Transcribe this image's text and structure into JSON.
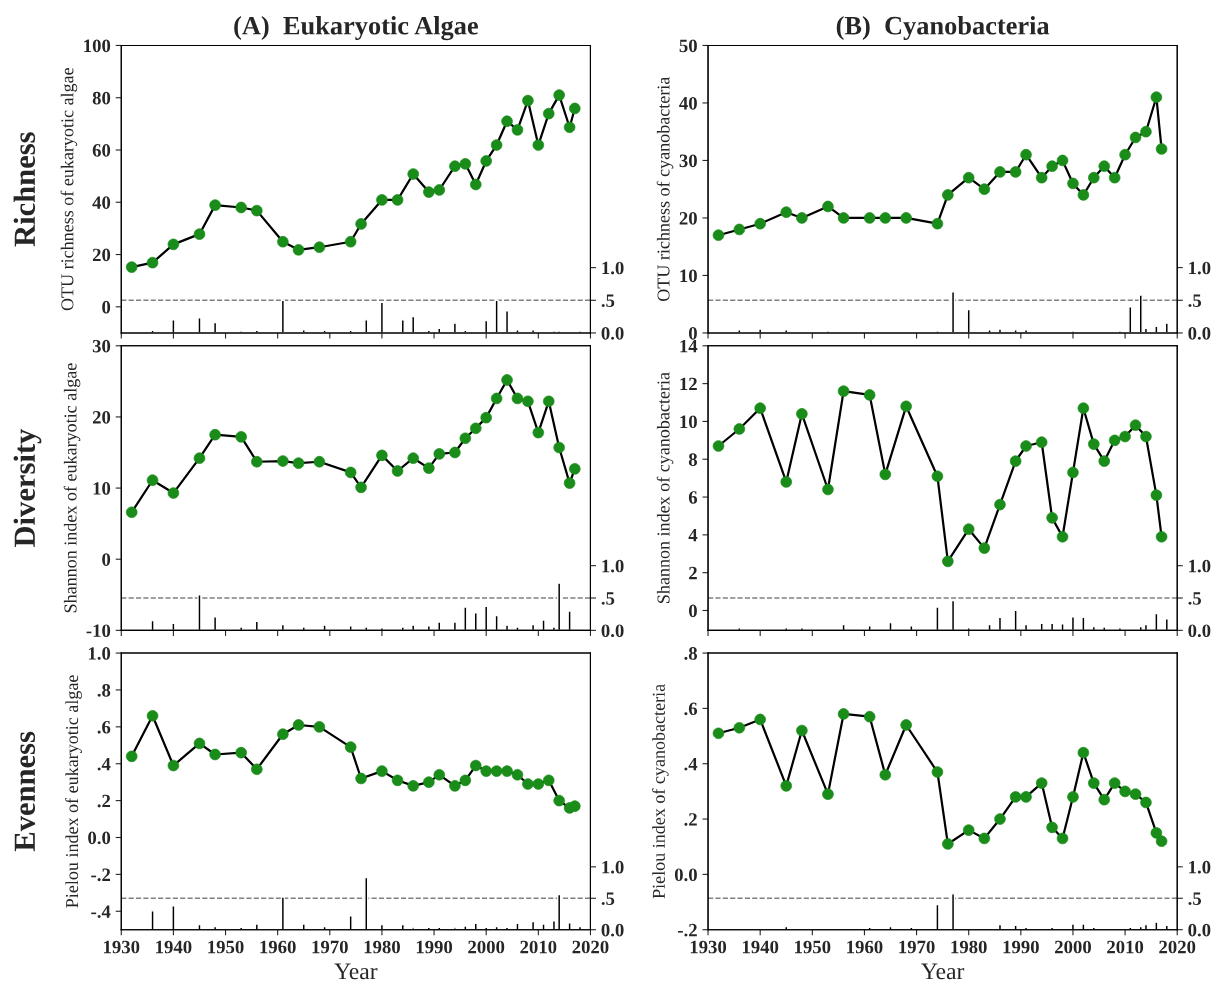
{
  "chart_data": [
    {
      "type": "line",
      "title": "(A)  Eukaryotic Algae",
      "ylabel": "OTU richness of eukaryotic algae",
      "annotations": [
        "Richness"
      ],
      "tick_labels": "y",
      "x": [
        1932,
        1936,
        1940,
        1945,
        1948,
        1953,
        1956,
        1961,
        1964,
        1968,
        1974,
        1976,
        1980,
        1983,
        1986,
        1989,
        1991,
        1994,
        1996,
        1998,
        2000,
        2002,
        2004,
        2006,
        2008,
        2010,
        2012,
        2014,
        2016,
        2017
      ],
      "xlim": [
        1930,
        2020
      ],
      "xticks": [
        1930,
        1940,
        1950,
        1960,
        1970,
        1980,
        1990,
        2000,
        2010,
        2020
      ],
      "ylim": [
        -10,
        100
      ],
      "yticks": [
        0,
        20,
        40,
        60,
        80,
        100
      ],
      "y2lim": [
        0,
        4.4
      ],
      "y2ticks": [
        {
          "value": 0,
          "label": "0.0"
        },
        {
          "value": 0.5,
          "label": ".5"
        },
        {
          "value": 1,
          "label": "1.0"
        }
      ],
      "ref_lines": [
        {
          "axis": "y2",
          "value": 0.5,
          "color": "#808080",
          "line_style": "dashed"
        }
      ],
      "series": [
        {
          "color": "#000000",
          "marker": "circle",
          "colors": [
            "#1a8c1a",
            "#1a8c1a",
            "#1a8c1a",
            "#1a8c1a",
            "#1a8c1a",
            "#1a8c1a",
            "#1a8c1a",
            "#1a8c1a",
            "#1a8c1a",
            "#1a8c1a",
            "#1a8c1a",
            "#1a8c1a",
            "#1a8c1a",
            "#1a8c1a",
            "#1a8c1a",
            "#1a8c1a",
            "#1a8c1a",
            "#1a8c1a",
            "#1a8c1a",
            "#1a8c1a",
            "#1a8c1a",
            "#1a8c1a",
            "#1a8c1a",
            "#1a8c1a",
            "#1a8c1a",
            "#1a8c1a",
            "#1a8c1a",
            "#1a8c1a",
            "#1a8c1a",
            "#1a8c1a"
          ],
          "values": [
            15.2,
            16.9,
            23.9,
            27.8,
            38.9,
            38.0,
            36.8,
            24.9,
            21.8,
            22.8,
            24.9,
            31.7,
            40.9,
            40.9,
            50.8,
            43.9,
            44.7,
            53.8,
            54.7,
            46.8,
            55.8,
            61.9,
            71.0,
            67.7,
            78.9,
            61.9,
            73.9,
            81.0,
            68.7,
            75.9
          ]
        },
        {
          "type": "bar",
          "axis": "y2",
          "color": "#000000",
          "x": [
            1936,
            1940,
            1945,
            1948,
            1953,
            1956,
            1961,
            1965,
            1969,
            1974,
            1977,
            1980,
            1984,
            1986,
            1989,
            1991,
            1994,
            1996,
            1998,
            2000,
            2002,
            2004,
            2006,
            2009,
            2011,
            2013,
            2014,
            2016,
            2018
          ],
          "values": [
            0.04,
            0.2,
            0.23,
            0.16,
            0.03,
            0.04,
            0.5,
            0.05,
            0.04,
            0.04,
            0.2,
            0.47,
            0.2,
            0.25,
            0.04,
            0.07,
            0.15,
            0.04,
            0.02,
            0.19,
            0.5,
            0.34,
            0.05,
            0.05,
            0.02,
            0.03,
            0.03,
            0.02,
            0.03
          ]
        }
      ]
    },
    {
      "type": "line",
      "title": "(B)  Cyanobacteria",
      "ylabel": "OTU richness of cyanobacteria",
      "tick_labels": "y",
      "x": [
        1932,
        1936,
        1940,
        1945,
        1948,
        1953,
        1956,
        1961,
        1964,
        1968,
        1974,
        1976,
        1980,
        1983,
        1986,
        1989,
        1991,
        1994,
        1996,
        1998,
        2000,
        2002,
        2004,
        2006,
        2008,
        2010,
        2012,
        2014,
        2016,
        2017
      ],
      "xlim": [
        1930,
        2020
      ],
      "xticks": [
        1930,
        1940,
        1950,
        1960,
        1970,
        1980,
        1990,
        2000,
        2010,
        2020
      ],
      "ylim": [
        0,
        50
      ],
      "yticks": [
        0,
        10,
        20,
        30,
        40,
        50
      ],
      "y2lim": [
        0,
        4.4
      ],
      "y2ticks": [
        {
          "value": 0,
          "label": "0.0"
        },
        {
          "value": 0.5,
          "label": ".5"
        },
        {
          "value": 1,
          "label": "1.0"
        }
      ],
      "ref_lines": [
        {
          "axis": "y2",
          "value": 0.5,
          "color": "#808080",
          "line_style": "dashed"
        }
      ],
      "series": [
        {
          "color": "#000000",
          "marker": "circle",
          "colors": [
            "#1a8c1a",
            "#1a8c1a",
            "#1a8c1a",
            "#1a8c1a",
            "#1a8c1a",
            "#1a8c1a",
            "#1a8c1a",
            "#1a8c1a",
            "#1a8c1a",
            "#1a8c1a",
            "#1a8c1a",
            "#1a8c1a",
            "#1a8c1a",
            "#1a8c1a",
            "#1a8c1a",
            "#1a8c1a",
            "#1a8c1a",
            "#1a8c1a",
            "#1a8c1a",
            "#1a8c1a",
            "#1a8c1a",
            "#1a8c1a",
            "#1a8c1a",
            "#1a8c1a",
            "#1a8c1a",
            "#1a8c1a",
            "#1a8c1a",
            "#1a8c1a",
            "#1a8c1a",
            "#1a8c1a"
          ],
          "values": [
            17,
            18,
            19,
            21,
            20,
            22,
            20,
            20,
            20,
            20,
            19,
            24,
            27,
            25,
            28,
            28,
            31,
            27,
            29,
            30,
            26,
            24,
            27,
            29,
            27,
            31,
            34,
            35,
            41,
            32
          ]
        },
        {
          "type": "bar",
          "axis": "y2",
          "color": "#000000",
          "x": [
            1936,
            1940,
            1945,
            1948,
            1953,
            1956,
            1961,
            1965,
            1969,
            1974,
            1977,
            1980,
            1984,
            1986,
            1989,
            1991,
            1994,
            1996,
            1998,
            2000,
            2002,
            2004,
            2006,
            2009,
            2011,
            2013,
            2014,
            2016,
            2018
          ],
          "values": [
            0.05,
            0.06,
            0.05,
            0.02,
            0.03,
            0.02,
            0.02,
            0.02,
            0.02,
            0.03,
            0.63,
            0.36,
            0.05,
            0.06,
            0.05,
            0.05,
            0.02,
            0.02,
            0.02,
            0.03,
            0.02,
            0.02,
            0.02,
            0.03,
            0.4,
            0.58,
            0.07,
            0.1,
            0.15
          ]
        }
      ]
    },
    {
      "type": "line",
      "ylabel": "Shannon index of eukaryotic algae",
      "annotations": [
        "Diversity"
      ],
      "tick_labels": "y",
      "x": [
        1932,
        1936,
        1940,
        1945,
        1948,
        1953,
        1956,
        1961,
        1964,
        1968,
        1974,
        1976,
        1980,
        1983,
        1986,
        1989,
        1991,
        1994,
        1996,
        1998,
        2000,
        2002,
        2004,
        2006,
        2008,
        2010,
        2012,
        2014,
        2016,
        2017
      ],
      "xlim": [
        1930,
        2020
      ],
      "xticks": [
        1930,
        1940,
        1950,
        1960,
        1970,
        1980,
        1990,
        2000,
        2010,
        2020
      ],
      "ylim": [
        -10,
        30
      ],
      "yticks": [
        -10,
        0,
        10,
        20,
        30
      ],
      "y2lim": [
        0,
        4.4
      ],
      "y2ticks": [
        {
          "value": 0,
          "label": "0.0"
        },
        {
          "value": 0.5,
          "label": ".5"
        },
        {
          "value": 1,
          "label": "1.0"
        }
      ],
      "ref_lines": [
        {
          "axis": "y2",
          "value": 0.5,
          "color": "#808080",
          "line_style": "dashed"
        }
      ],
      "series": [
        {
          "color": "#000000",
          "marker": "circle",
          "colors": [
            "#1a8c1a",
            "#1a8c1a",
            "#1a8c1a",
            "#1a8c1a",
            "#1a8c1a",
            "#1a8c1a",
            "#1a8c1a",
            "#1a8c1a",
            "#1a8c1a",
            "#1a8c1a",
            "#1a8c1a",
            "#1a8c1a",
            "#1a8c1a",
            "#1a8c1a",
            "#1a8c1a",
            "#1a8c1a",
            "#1a8c1a",
            "#1a8c1a",
            "#1a8c1a",
            "#1a8c1a",
            "#1a8c1a",
            "#1a8c1a",
            "#1a8c1a",
            "#1a8c1a",
            "#1a8c1a",
            "#1a8c1a",
            "#1a8c1a",
            "#1a8c1a",
            "#1a8c1a",
            "#1a8c1a"
          ],
          "values": [
            6.6,
            11.1,
            9.3,
            14.2,
            17.5,
            17.2,
            13.7,
            13.8,
            13.5,
            13.7,
            12.2,
            10.1,
            14.6,
            12.4,
            14.2,
            12.8,
            14.8,
            15.0,
            17.0,
            18.4,
            19.9,
            22.6,
            25.2,
            22.6,
            22.2,
            17.8,
            22.2,
            15.7,
            10.7,
            12.7
          ]
        },
        {
          "type": "bar",
          "axis": "y2",
          "color": "#000000",
          "x": [
            1936,
            1940,
            1945,
            1948,
            1953,
            1956,
            1961,
            1965,
            1969,
            1974,
            1977,
            1980,
            1984,
            1986,
            1989,
            1991,
            1994,
            1996,
            1998,
            2000,
            2002,
            2004,
            2006,
            2009,
            2011,
            2013,
            2014,
            2016,
            2018
          ],
          "values": [
            0.15,
            0.11,
            0.55,
            0.21,
            0.05,
            0.14,
            0.09,
            0.05,
            0.08,
            0.07,
            0.05,
            0.04,
            0.05,
            0.08,
            0.07,
            0.13,
            0.13,
            0.36,
            0.27,
            0.37,
            0.23,
            0.08,
            0.05,
            0.09,
            0.16,
            0.05,
            0.73,
            0.3,
            0.02
          ]
        }
      ]
    },
    {
      "type": "line",
      "ylabel": "Shannon index of cyanobacteria",
      "tick_labels": "y",
      "x": [
        1932,
        1936,
        1940,
        1945,
        1948,
        1953,
        1956,
        1961,
        1964,
        1968,
        1974,
        1976,
        1980,
        1983,
        1986,
        1989,
        1991,
        1994,
        1996,
        1998,
        2000,
        2002,
        2004,
        2006,
        2008,
        2010,
        2012,
        2014,
        2016,
        2017
      ],
      "xlim": [
        1930,
        2020
      ],
      "xticks": [
        1930,
        1940,
        1950,
        1960,
        1970,
        1980,
        1990,
        2000,
        2010,
        2020
      ],
      "ylim": [
        -1.05,
        14
      ],
      "yticks": [
        0,
        2,
        4,
        6,
        8,
        10,
        12,
        14
      ],
      "y2lim": [
        0,
        4.4
      ],
      "y2ticks": [
        {
          "value": 0,
          "label": "0.0"
        },
        {
          "value": 0.5,
          "label": ".5"
        },
        {
          "value": 1,
          "label": "1.0"
        }
      ],
      "ref_lines": [
        {
          "axis": "y2",
          "value": 0.5,
          "color": "#808080",
          "line_style": "dashed"
        }
      ],
      "series": [
        {
          "color": "#000000",
          "marker": "circle",
          "colors": [
            "#1a8c1a",
            "#1a8c1a",
            "#1a8c1a",
            "#1a8c1a",
            "#1a8c1a",
            "#1a8c1a",
            "#1a8c1a",
            "#1a8c1a",
            "#1a8c1a",
            "#1a8c1a",
            "#1a8c1a",
            "#1a8c1a",
            "#1a8c1a",
            "#1a8c1a",
            "#1a8c1a",
            "#1a8c1a",
            "#1a8c1a",
            "#1a8c1a",
            "#1a8c1a",
            "#1a8c1a",
            "#1a8c1a",
            "#1a8c1a",
            "#1a8c1a",
            "#1a8c1a",
            "#1a8c1a",
            "#1a8c1a",
            "#1a8c1a",
            "#1a8c1a",
            "#1a8c1a",
            "#1a8c1a"
          ],
          "values": [
            8.7,
            9.6,
            10.7,
            6.8,
            10.4,
            6.4,
            11.6,
            11.4,
            7.2,
            10.8,
            7.1,
            2.6,
            4.3,
            3.3,
            5.6,
            7.9,
            8.7,
            8.9,
            4.9,
            3.9,
            7.3,
            10.7,
            8.8,
            7.9,
            9.0,
            9.2,
            9.8,
            9.2,
            6.1,
            3.9
          ]
        },
        {
          "type": "bar",
          "axis": "y2",
          "color": "#000000",
          "x": [
            1936,
            1940,
            1945,
            1948,
            1953,
            1956,
            1961,
            1965,
            1969,
            1974,
            1977,
            1980,
            1984,
            1986,
            1989,
            1991,
            1994,
            1996,
            1998,
            2000,
            2002,
            2004,
            2006,
            2009,
            2011,
            2013,
            2014,
            2016,
            2018
          ],
          "values": [
            0.04,
            0.02,
            0.04,
            0.04,
            0.02,
            0.09,
            0.07,
            0.12,
            0.07,
            0.36,
            0.46,
            0.04,
            0.09,
            0.2,
            0.31,
            0.09,
            0.11,
            0.11,
            0.1,
            0.21,
            0.2,
            0.06,
            0.05,
            0.04,
            0.02,
            0.06,
            0.09,
            0.26,
            0.18
          ]
        }
      ]
    },
    {
      "type": "line",
      "ylabel": "Pielou index of eukaryotic algae",
      "xlabel": "Year",
      "annotations": [
        "Evenness"
      ],
      "x": [
        1932,
        1936,
        1940,
        1945,
        1948,
        1953,
        1956,
        1961,
        1964,
        1968,
        1974,
        1976,
        1980,
        1983,
        1986,
        1989,
        1991,
        1994,
        1996,
        1998,
        2000,
        2002,
        2004,
        2006,
        2008,
        2010,
        2012,
        2014,
        2016,
        2017
      ],
      "xlim": [
        1930,
        2020
      ],
      "xticks": [
        1930,
        1940,
        1950,
        1960,
        1970,
        1980,
        1990,
        2000,
        2010,
        2020
      ],
      "ylim": [
        -0.5,
        1.0
      ],
      "yticks": [
        {
          "value": -0.4,
          "label": "-.4"
        },
        {
          "value": -0.2,
          "label": "-.2"
        },
        {
          "value": 0,
          "label": "0.0"
        },
        {
          "value": 0.2,
          "label": ".2"
        },
        {
          "value": 0.4,
          "label": ".4"
        },
        {
          "value": 0.6,
          "label": ".6"
        },
        {
          "value": 0.8,
          "label": ".8"
        },
        {
          "value": 1.0,
          "label": "1.0"
        }
      ],
      "y2lim": [
        0,
        4.4
      ],
      "y2ticks": [
        {
          "value": 0,
          "label": "0.0"
        },
        {
          "value": 0.5,
          "label": ".5"
        },
        {
          "value": 1,
          "label": "1.0"
        }
      ],
      "ref_lines": [
        {
          "axis": "y2",
          "value": 0.5,
          "color": "#808080",
          "line_style": "dashed"
        }
      ],
      "series": [
        {
          "color": "#000000",
          "marker": "circle",
          "colors": [
            "#1a8c1a",
            "#1a8c1a",
            "#1a8c1a",
            "#1a8c1a",
            "#1a8c1a",
            "#1a8c1a",
            "#1a8c1a",
            "#1a8c1a",
            "#1a8c1a",
            "#1a8c1a",
            "#1a8c1a",
            "#1a8c1a",
            "#1a8c1a",
            "#1a8c1a",
            "#1a8c1a",
            "#1a8c1a",
            "#1a8c1a",
            "#1a8c1a",
            "#1a8c1a",
            "#1a8c1a",
            "#1a8c1a",
            "#1a8c1a",
            "#1a8c1a",
            "#1a8c1a",
            "#1a8c1a",
            "#1a8c1a",
            "#1a8c1a",
            "#1a8c1a",
            "#1a8c1a",
            "#1a8c1a"
          ],
          "values": [
            0.44,
            0.66,
            0.39,
            0.51,
            0.45,
            0.46,
            0.37,
            0.56,
            0.61,
            0.6,
            0.49,
            0.32,
            0.36,
            0.31,
            0.28,
            0.3,
            0.34,
            0.28,
            0.31,
            0.39,
            0.36,
            0.36,
            0.36,
            0.34,
            0.29,
            0.29,
            0.31,
            0.2,
            0.16,
            0.17
          ]
        },
        {
          "type": "bar",
          "axis": "y2",
          "color": "#000000",
          "x": [
            1936,
            1940,
            1945,
            1948,
            1953,
            1956,
            1961,
            1965,
            1969,
            1974,
            1977,
            1980,
            1984,
            1986,
            1989,
            1991,
            1994,
            1996,
            1998,
            2000,
            2002,
            2004,
            2006,
            2009,
            2011,
            2013,
            2014,
            2016,
            2018
          ],
          "values": [
            0.3,
            0.38,
            0.08,
            0.05,
            0.04,
            0.09,
            0.52,
            0.09,
            0.05,
            0.22,
            0.83,
            0.08,
            0.08,
            0.03,
            0.04,
            0.04,
            0.03,
            0.06,
            0.1,
            0.04,
            0.05,
            0.04,
            0.1,
            0.13,
            0.09,
            0.14,
            0.56,
            0.11,
            0.05
          ]
        }
      ]
    },
    {
      "type": "line",
      "ylabel": "Pielou index of cyanobacteria",
      "xlabel": "Year",
      "x": [
        1932,
        1936,
        1940,
        1945,
        1948,
        1953,
        1956,
        1961,
        1964,
        1968,
        1974,
        1976,
        1980,
        1983,
        1986,
        1989,
        1991,
        1994,
        1996,
        1998,
        2000,
        2002,
        2004,
        2006,
        2008,
        2010,
        2012,
        2014,
        2016,
        2017
      ],
      "xlim": [
        1930,
        2020
      ],
      "xticks": [
        1930,
        1940,
        1950,
        1960,
        1970,
        1980,
        1990,
        2000,
        2010,
        2020
      ],
      "ylim": [
        -0.2,
        0.8
      ],
      "yticks": [
        {
          "value": -0.2,
          "label": "-.2"
        },
        {
          "value": 0,
          "label": "0.0"
        },
        {
          "value": 0.2,
          "label": ".2"
        },
        {
          "value": 0.4,
          "label": ".4"
        },
        {
          "value": 0.6,
          "label": ".6"
        },
        {
          "value": 0.8,
          "label": ".8"
        }
      ],
      "y2lim": [
        0,
        4.4
      ],
      "y2ticks": [
        {
          "value": 0,
          "label": "0.0"
        },
        {
          "value": 0.5,
          "label": ".5"
        },
        {
          "value": 1,
          "label": "1.0"
        }
      ],
      "ref_lines": [
        {
          "axis": "y2",
          "value": 0.5,
          "color": "#808080",
          "line_style": "dashed"
        }
      ],
      "series": [
        {
          "color": "#000000",
          "marker": "circle",
          "colors": [
            "#1a8c1a",
            "#1a8c1a",
            "#1a8c1a",
            "#1a8c1a",
            "#1a8c1a",
            "#1a8c1a",
            "#1a8c1a",
            "#1a8c1a",
            "#1a8c1a",
            "#1a8c1a",
            "#1a8c1a",
            "#1a8c1a",
            "#1a8c1a",
            "#1a8c1a",
            "#1a8c1a",
            "#1a8c1a",
            "#1a8c1a",
            "#1a8c1a",
            "#1a8c1a",
            "#1a8c1a",
            "#1a8c1a",
            "#1a8c1a",
            "#1a8c1a",
            "#1a8c1a",
            "#1a8c1a",
            "#1a8c1a",
            "#1a8c1a",
            "#1a8c1a",
            "#1a8c1a",
            "#1a8c1a"
          ],
          "values": [
            0.51,
            0.53,
            0.56,
            0.32,
            0.52,
            0.29,
            0.58,
            0.57,
            0.36,
            0.54,
            0.37,
            0.11,
            0.16,
            0.13,
            0.2,
            0.28,
            0.28,
            0.33,
            0.17,
            0.13,
            0.28,
            0.44,
            0.33,
            0.27,
            0.33,
            0.3,
            0.29,
            0.26,
            0.15,
            0.12
          ]
        },
        {
          "type": "bar",
          "axis": "y2",
          "color": "#000000",
          "x": [
            1936,
            1940,
            1945,
            1948,
            1953,
            1956,
            1961,
            1965,
            1969,
            1974,
            1977,
            1980,
            1984,
            1986,
            1989,
            1991,
            1994,
            1996,
            1998,
            2000,
            2002,
            2004,
            2006,
            2009,
            2011,
            2013,
            2014,
            2016,
            2018
          ],
          "values": [
            0.01,
            0.02,
            0.05,
            0.01,
            0.02,
            0.02,
            0.04,
            0.05,
            0.04,
            0.4,
            0.57,
            0.02,
            0.02,
            0.08,
            0.07,
            0.04,
            0.02,
            0.04,
            0.02,
            0.09,
            0.09,
            0.04,
            0.02,
            0.01,
            0.04,
            0.05,
            0.08,
            0.12,
            0.07
          ]
        }
      ]
    }
  ]
}
